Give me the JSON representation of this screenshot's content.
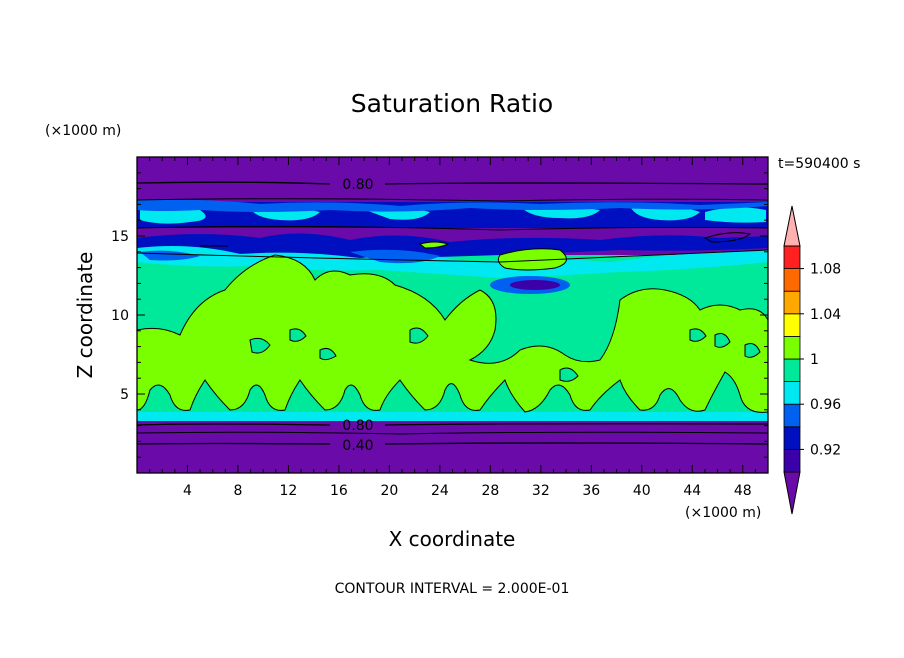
{
  "chart_data": {
    "type": "heatmap",
    "title": "Saturation Ratio",
    "xlabel": "X coordinate",
    "ylabel": "Z coordinate",
    "x_unit": "(×1000 m)",
    "y_unit": "(×1000 m)",
    "xlim": [
      0,
      50
    ],
    "ylim": [
      0,
      20
    ],
    "x_ticks": [
      4,
      8,
      12,
      16,
      20,
      24,
      28,
      32,
      36,
      40,
      44,
      48
    ],
    "y_ticks": [
      5,
      10,
      15
    ],
    "time_label": "t=590400 s",
    "footer": "CONTOUR INTERVAL = 2.000E-01",
    "contour_labels": [
      "0.80",
      "0.80",
      "0.40"
    ],
    "colorbar": {
      "labels": [
        "0.92",
        "0.96",
        "1",
        "1.04",
        "1.08"
      ],
      "colors": [
        "#6a0aa8",
        "#3b00a8",
        "#0010c0",
        "#0060f0",
        "#00e8f0",
        "#00e89a",
        "#7aff00",
        "#ffff00",
        "#ffa800",
        "#ff6a00",
        "#ff2020",
        "#ffb0b0"
      ]
    }
  }
}
